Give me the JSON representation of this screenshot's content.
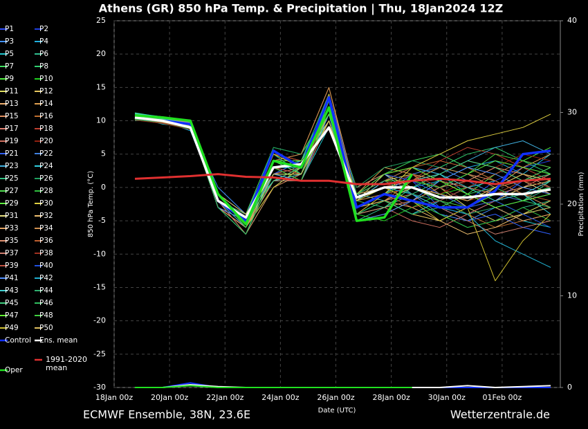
{
  "chart_data": {
    "type": "line",
    "title": "Athens  (GR)  850 hPa Temp. & Precipitation | Thu, 18Jan2024 12Z",
    "subtitle": "ECMWF Ensemble, 38N, 23.6E",
    "source": "Wetterzentrale.de",
    "x_label": "Date (UTC)",
    "y_label": "850 hPa Temp. (°C)",
    "y2_label": "Precipitation (mm)",
    "xlim": [
      0,
      16.1
    ],
    "ylim": [
      -30,
      25
    ],
    "y2lim": [
      0,
      40
    ],
    "xticks": [
      {
        "value": 0,
        "label": "18Jan 00z"
      },
      {
        "value": 2,
        "label": "20Jan 00z"
      },
      {
        "value": 4,
        "label": "22Jan 00z"
      },
      {
        "value": 6,
        "label": "24Jan 00z"
      },
      {
        "value": 8,
        "label": "26Jan 00z"
      },
      {
        "value": 10,
        "label": "28Jan 00z"
      },
      {
        "value": 12,
        "label": "30Jan 00z"
      },
      {
        "value": 14,
        "label": "01Feb 00z"
      }
    ],
    "yticks": [
      -30,
      -25,
      -20,
      -15,
      -10,
      -5,
      0,
      5,
      10,
      15,
      20,
      25
    ],
    "y2ticks": [
      0,
      10,
      20,
      30,
      40
    ],
    "grid": true,
    "x": [
      0.75,
      1.75,
      2.75,
      3.75,
      4.75,
      5.75,
      6.75,
      7.75,
      8.75,
      9.75,
      10.75,
      11.75,
      12.75,
      13.75,
      14.75,
      15.75
    ],
    "series": [
      {
        "name": "P1",
        "color": "#3050ff",
        "values": [
          10.5,
          10,
          9,
          -1,
          -5,
          4,
          2,
          11,
          -2,
          0,
          1,
          -3,
          -4,
          -2,
          1,
          3
        ]
      },
      {
        "name": "P2",
        "color": "#2040e0",
        "values": [
          10.2,
          9.8,
          9.5,
          -2,
          -6,
          3,
          3,
          12,
          -3,
          -1,
          2,
          0,
          -2,
          1,
          3,
          4
        ]
      },
      {
        "name": "P3",
        "color": "#4090ff",
        "values": [
          11,
          10.5,
          9,
          0,
          -4,
          5,
          2,
          10,
          -1,
          2,
          -1,
          -4,
          -5,
          -3,
          -2,
          -1
        ]
      },
      {
        "name": "P4",
        "color": "#20b0e0",
        "values": [
          10.8,
          10,
          8.5,
          -2,
          -5,
          2,
          4,
          13,
          -4,
          -2,
          0,
          1,
          3,
          4,
          2,
          5
        ]
      },
      {
        "name": "P5",
        "color": "#20c8d0",
        "values": [
          10.5,
          9.5,
          9,
          -1,
          -6,
          1,
          1,
          9,
          -2,
          1,
          3,
          2,
          -1,
          -3,
          -5,
          -6
        ]
      },
      {
        "name": "P6",
        "color": "#30c090",
        "values": [
          10,
          10.2,
          9.5,
          -3,
          -7,
          0,
          3,
          14,
          -5,
          -3,
          -2,
          -4,
          -6,
          -5,
          -3,
          -2
        ]
      },
      {
        "name": "P7",
        "color": "#40e060",
        "values": [
          11.2,
          10.5,
          10,
          -1,
          -4,
          6,
          5,
          12,
          0,
          2,
          4,
          5,
          3,
          1,
          -1,
          0
        ]
      },
      {
        "name": "P8",
        "color": "#30d070",
        "values": [
          10.6,
          10,
          9.2,
          -2,
          -5,
          3,
          2,
          11,
          -3,
          -1,
          1,
          3,
          5,
          6,
          4,
          2
        ]
      },
      {
        "name": "P9",
        "color": "#50f040",
        "values": [
          10.4,
          9.8,
          9,
          -1,
          -5,
          4,
          3,
          10,
          -1,
          0,
          -2,
          -3,
          -1,
          2,
          4,
          6
        ]
      },
      {
        "name": "P10",
        "color": "#20d020",
        "values": [
          10.9,
          10.3,
          9.5,
          -2,
          -6,
          2,
          2,
          13,
          -4,
          -5,
          -3,
          -1,
          0,
          -2,
          -4,
          -3
        ]
      },
      {
        "name": "P11",
        "color": "#e0e060",
        "values": [
          10.3,
          10.1,
          8.8,
          -1,
          -4,
          5,
          4,
          11,
          -2,
          1,
          2,
          0,
          -3,
          -5,
          -4,
          -2
        ]
      },
      {
        "name": "P12",
        "color": "#e8c860",
        "values": [
          10.7,
          10.4,
          9.6,
          -2,
          -5,
          1,
          3,
          12,
          -3,
          -2,
          -4,
          -5,
          -3,
          0,
          2,
          1
        ]
      },
      {
        "name": "P13",
        "color": "#f0b070",
        "values": [
          10.5,
          9.9,
          9.1,
          -3,
          -6,
          2,
          1,
          10,
          -2,
          0,
          1,
          2,
          4,
          3,
          1,
          -1
        ]
      },
      {
        "name": "P14",
        "color": "#e0a050",
        "values": [
          11,
          10.6,
          9.8,
          -1,
          -5,
          4,
          5,
          15,
          -1,
          3,
          2,
          -1,
          -2,
          0,
          3,
          5
        ]
      },
      {
        "name": "P15",
        "color": "#e09060",
        "values": [
          10.2,
          9.7,
          8.9,
          -2,
          -7,
          0,
          2,
          12,
          -5,
          -4,
          -2,
          0,
          2,
          1,
          -1,
          -3
        ]
      },
      {
        "name": "P16",
        "color": "#c07030",
        "values": [
          10.8,
          10.2,
          9.4,
          -1,
          -4,
          3,
          3,
          14,
          -2,
          -1,
          0,
          -2,
          -4,
          -6,
          -5,
          -4
        ]
      },
      {
        "name": "P17",
        "color": "#e08070",
        "values": [
          10.6,
          10,
          9,
          -2,
          -5,
          5,
          4,
          11,
          0,
          2,
          3,
          1,
          0,
          -1,
          0,
          2
        ]
      },
      {
        "name": "P18",
        "color": "#c04030",
        "values": [
          10.4,
          9.9,
          9.3,
          -1,
          -6,
          1,
          2,
          13,
          -3,
          -2,
          1,
          4,
          6,
          5,
          3,
          1
        ]
      },
      {
        "name": "P19",
        "color": "#d07060",
        "values": [
          10.9,
          10.4,
          9.7,
          -3,
          -5,
          3,
          1,
          10,
          -4,
          -3,
          -5,
          -6,
          -4,
          -2,
          0,
          -1
        ]
      },
      {
        "name": "P20",
        "color": "#902010",
        "values": [
          10.1,
          9.6,
          8.7,
          -2,
          -4,
          4,
          3,
          12,
          -1,
          1,
          0,
          -1,
          1,
          3,
          5,
          4
        ]
      },
      {
        "name": "P21",
        "color": "#3060ff",
        "values": [
          10.5,
          10.1,
          9.2,
          -1,
          -5,
          2,
          4,
          11,
          -2,
          0,
          -1,
          -3,
          -5,
          -4,
          -6,
          -7
        ]
      },
      {
        "name": "P22",
        "color": "#4080e0",
        "values": [
          10.7,
          10.3,
          9.5,
          -2,
          -6,
          4,
          2,
          13,
          -3,
          -1,
          2,
          3,
          1,
          -1,
          -2,
          0
        ]
      },
      {
        "name": "P23",
        "color": "#40b0e0",
        "values": [
          10.3,
          9.8,
          9,
          -1,
          -5,
          5,
          3,
          12,
          -2,
          1,
          3,
          2,
          4,
          6,
          7,
          5
        ]
      },
      {
        "name": "P24",
        "color": "#30d0e0",
        "values": [
          11.1,
          10.6,
          9.9,
          -2,
          -4,
          1,
          2,
          10,
          -1,
          -2,
          -4,
          -2,
          0,
          1,
          -1,
          -4
        ]
      },
      {
        "name": "P25",
        "color": "#30c080",
        "values": [
          10.6,
          10,
          9.3,
          -3,
          -7,
          3,
          4,
          14,
          -4,
          -3,
          -1,
          1,
          -1,
          -3,
          -2,
          1
        ]
      },
      {
        "name": "P26",
        "color": "#20a060",
        "values": [
          10.4,
          10,
          9.1,
          -1,
          -5,
          6,
          5,
          11,
          0,
          3,
          4,
          3,
          2,
          0,
          -2,
          -3
        ]
      },
      {
        "name": "P27",
        "color": "#50e050",
        "values": [
          10.8,
          10.2,
          9.6,
          -2,
          -5,
          2,
          1,
          12,
          -3,
          -2,
          0,
          -2,
          -3,
          -1,
          1,
          3
        ]
      },
      {
        "name": "P28",
        "color": "#30c040",
        "values": [
          10.2,
          9.7,
          8.8,
          -1,
          -6,
          3,
          3,
          13,
          -2,
          0,
          -2,
          -4,
          -6,
          -5,
          -3,
          -5
        ]
      },
      {
        "name": "P29",
        "color": "#60f040",
        "values": [
          10.9,
          10.5,
          9.8,
          -2,
          -4,
          4,
          2,
          11,
          -1,
          1,
          1,
          0,
          2,
          4,
          3,
          2
        ]
      },
      {
        "name": "P30",
        "color": "#e0d040",
        "values": [
          10.5,
          9.9,
          9.2,
          -3,
          -6,
          0,
          3,
          12,
          -4,
          -1,
          3,
          5,
          7,
          8,
          9,
          11
        ]
      },
      {
        "name": "P31",
        "color": "#e8e080",
        "values": [
          10.3,
          10,
          9.4,
          -1,
          -5,
          5,
          4,
          10,
          -2,
          2,
          0,
          -1,
          -3,
          -2,
          0,
          1
        ]
      },
      {
        "name": "P32",
        "color": "#f0c070",
        "values": [
          10.7,
          10.1,
          9,
          -2,
          -6,
          2,
          2,
          13,
          -3,
          -2,
          -3,
          -5,
          -7,
          -6,
          -4,
          -3
        ]
      },
      {
        "name": "P33",
        "color": "#e0a060",
        "values": [
          10.6,
          10.3,
          9.5,
          -1,
          -5,
          3,
          3,
          11,
          -1,
          0,
          2,
          1,
          -1,
          -3,
          -5,
          -4
        ]
      },
      {
        "name": "P34",
        "color": "#d09050",
        "values": [
          10.4,
          9.8,
          9.1,
          -2,
          -4,
          4,
          5,
          15,
          -2,
          -1,
          1,
          3,
          2,
          0,
          1,
          2
        ]
      },
      {
        "name": "P35",
        "color": "#e09070",
        "values": [
          11,
          10.5,
          9.7,
          -3,
          -6,
          1,
          1,
          12,
          -4,
          -3,
          -2,
          0,
          1,
          3,
          2,
          0
        ]
      },
      {
        "name": "P36",
        "color": "#c06030",
        "values": [
          10.2,
          9.9,
          9.2,
          -1,
          -5,
          3,
          2,
          10,
          -1,
          1,
          3,
          4,
          3,
          1,
          -1,
          -2
        ]
      },
      {
        "name": "P37",
        "color": "#d08070",
        "values": [
          10.8,
          10.4,
          9.6,
          -2,
          -7,
          2,
          3,
          13,
          -3,
          -2,
          -1,
          -3,
          -5,
          -7,
          -6,
          -5
        ]
      },
      {
        "name": "P38",
        "color": "#a03020",
        "values": [
          10.5,
          10,
          9,
          -1,
          -5,
          5,
          4,
          11,
          -2,
          0,
          2,
          0,
          -2,
          -1,
          1,
          0
        ]
      },
      {
        "name": "P39",
        "color": "#c05040",
        "values": [
          10.3,
          9.7,
          8.9,
          -2,
          -6,
          3,
          2,
          12,
          -3,
          -1,
          -3,
          -2,
          0,
          2,
          4,
          3
        ]
      },
      {
        "name": "P40",
        "color": "#2050e0",
        "values": [
          10.9,
          10.2,
          9.5,
          -1,
          -4,
          4,
          3,
          14,
          -1,
          2,
          1,
          -1,
          -3,
          -2,
          -4,
          -6
        ]
      },
      {
        "name": "P41",
        "color": "#5090ff",
        "values": [
          10.6,
          10.1,
          9.3,
          -3,
          -5,
          2,
          1,
          11,
          -5,
          -4,
          -2,
          1,
          3,
          2,
          0,
          -1
        ]
      },
      {
        "name": "P42",
        "color": "#20b0d0",
        "values": [
          10.4,
          10,
          9.2,
          -2,
          -6,
          4,
          4,
          13,
          -2,
          0,
          -1,
          -3,
          -4,
          -8,
          -10,
          -12
        ]
      },
      {
        "name": "P43",
        "color": "#40d0d0",
        "values": [
          10.7,
          10.3,
          9.6,
          -1,
          -5,
          3,
          3,
          12,
          -3,
          -1,
          1,
          2,
          0,
          -2,
          -1,
          1
        ]
      },
      {
        "name": "P44",
        "color": "#30b070",
        "values": [
          10.2,
          9.8,
          9,
          -2,
          -4,
          5,
          2,
          10,
          -1,
          1,
          -1,
          -2,
          -4,
          -3,
          -2,
          0
        ]
      },
      {
        "name": "P45",
        "color": "#40d080",
        "values": [
          11,
          10.5,
          9.8,
          -1,
          -5,
          1,
          3,
          12,
          -2,
          -3,
          0,
          2,
          4,
          3,
          1,
          2
        ]
      },
      {
        "name": "P46",
        "color": "#30c060",
        "values": [
          10.5,
          9.9,
          9.1,
          -3,
          -7,
          2,
          2,
          13,
          -4,
          -2,
          -4,
          -3,
          -1,
          0,
          -2,
          -3
        ]
      },
      {
        "name": "P47",
        "color": "#60f030",
        "values": [
          10.3,
          10,
          9.4,
          -2,
          -5,
          4,
          4,
          11,
          -1,
          2,
          3,
          1,
          -1,
          -3,
          -2,
          -1
        ]
      },
      {
        "name": "P48",
        "color": "#40d040",
        "values": [
          10.8,
          10.2,
          9.5,
          -1,
          -6,
          3,
          1,
          12,
          -3,
          -1,
          1,
          0,
          2,
          5,
          4,
          3
        ]
      },
      {
        "name": "P49",
        "color": "#d0c030",
        "values": [
          10.6,
          10.1,
          9.2,
          -2,
          -5,
          5,
          3,
          14,
          -2,
          0,
          -2,
          -5,
          -3,
          -14,
          -8,
          -4
        ]
      },
      {
        "name": "P50",
        "color": "#e0c060",
        "values": [
          10.4,
          9.8,
          9,
          -1,
          -4,
          2,
          2,
          10,
          -3,
          -2,
          0,
          -1,
          -2,
          0,
          2,
          1
        ]
      },
      {
        "name": "Control",
        "color": "#1030ff",
        "width": 3.5,
        "values": [
          10.5,
          10,
          9.5,
          -2,
          -5,
          5.5,
          3,
          13.5,
          -3,
          -1,
          -2,
          -3,
          -3,
          -0.5,
          5,
          5.5
        ],
        "precip": [
          0,
          0,
          0.5,
          0,
          0,
          0,
          0,
          0,
          0,
          0,
          0,
          0,
          0,
          0,
          0,
          0
        ]
      },
      {
        "name": "Ens. mean",
        "color": "#ffffff",
        "width": 3.5,
        "values": [
          10.5,
          10,
          9,
          -2,
          -4.5,
          3,
          3.5,
          9,
          -1.5,
          0,
          0,
          -1.5,
          -1.5,
          -1,
          -1,
          -0.3
        ],
        "precip": [
          0,
          0,
          0.3,
          0.1,
          0,
          0,
          0,
          0,
          0,
          0,
          0,
          0,
          0.2,
          0,
          0.1,
          0.2
        ]
      },
      {
        "name": "Oper",
        "color": "#20e020",
        "width": 3.5,
        "values": [
          10.8,
          10.5,
          10,
          -1,
          -5.5,
          4,
          3,
          12,
          -5,
          -4.5,
          2,
          null,
          null,
          null,
          null,
          null
        ],
        "precip": [
          0,
          0,
          0.2,
          0,
          0,
          0,
          0,
          0,
          0,
          0,
          0,
          null,
          null,
          null,
          null,
          null
        ]
      },
      {
        "name": "1991-2020 mean",
        "color": "#e03030",
        "width": 3,
        "values": [
          1.3,
          1.5,
          1.7,
          2,
          1.6,
          1.5,
          1,
          1,
          0.5,
          0.5,
          1,
          1.3,
          1,
          0.5,
          1,
          1.3
        ]
      }
    ]
  }
}
